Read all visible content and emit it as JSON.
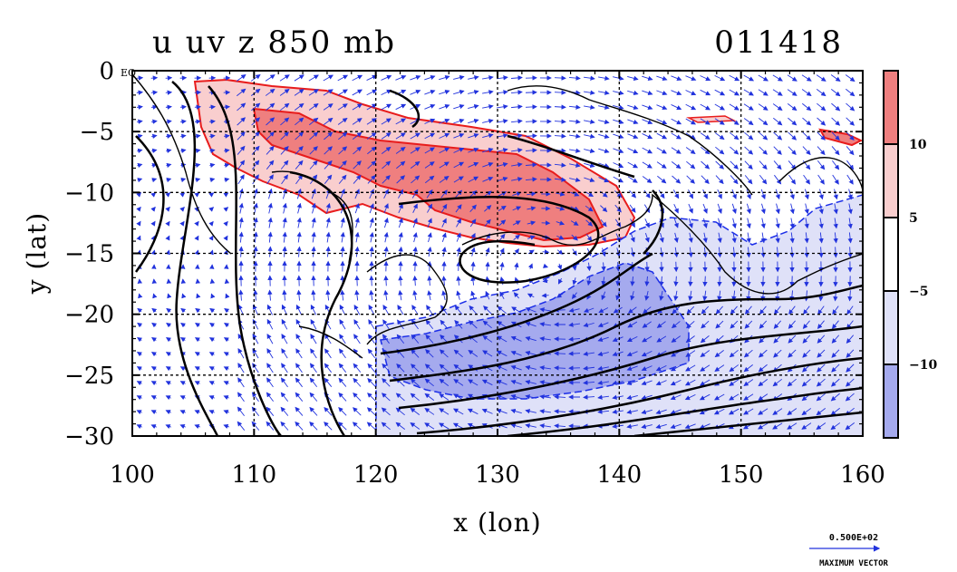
{
  "chart_data": {
    "type": "heatmap",
    "title": "u uv z 850 mb",
    "timestamp": "011418",
    "xlabel": "x (lon)",
    "ylabel": "y (lat)",
    "xlim": [
      100,
      160
    ],
    "ylim": [
      -30,
      0
    ],
    "x_ticks": [
      "100",
      "110",
      "120",
      "130",
      "140",
      "150",
      "160"
    ],
    "x_tick_values": [
      100,
      110,
      120,
      130,
      140,
      150,
      160
    ],
    "y_ticks": [
      "0",
      "−5",
      "−10",
      "−15",
      "−20",
      "−25",
      "−30"
    ],
    "y_tick_values": [
      0,
      -5,
      -10,
      -15,
      -20,
      -25,
      -30
    ],
    "eq_label": "EQ",
    "grid": true,
    "colorbar": {
      "position": "right",
      "levels": [
        {
          "label": "10",
          "color": "#ef7f7f"
        },
        {
          "label": "5",
          "color": "#f9cece"
        },
        {
          "label": "−5",
          "color": "#ffffff"
        },
        {
          "label": "−10",
          "color": "#dfe1f8"
        },
        {
          "label": "",
          "color": "#a5aaee"
        }
      ]
    },
    "shading": {
      "positive_strong": "#ef7f7f",
      "positive_weak": "#f9cece",
      "negative_weak": "#dfe1f8",
      "negative_strong": "#a5aaee",
      "positive_contour": "#e81c1c",
      "negative_contour": "#1c2ee8",
      "vector_color": "#2233dd",
      "height_contour": "#000000"
    },
    "reference_vector": {
      "value_label": "0.500E+02",
      "caption": "MAXIMUM VECTOR"
    }
  }
}
